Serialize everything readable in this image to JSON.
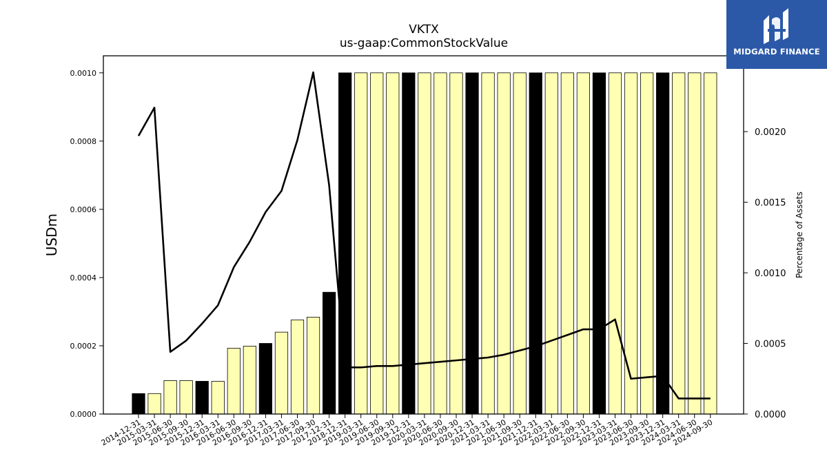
{
  "chart_data": {
    "type": "bar",
    "title": "VKTX",
    "subtitle": "us-gaap:CommonStockValue",
    "ylabel": "USDm",
    "y2label": "Percentage of Assets",
    "ylim": [
      0,
      0.00105
    ],
    "y2lim": [
      0,
      0.002537
    ],
    "yticks": [
      "0.0000",
      "0.0002",
      "0.0004",
      "0.0006",
      "0.0008",
      "0.0010"
    ],
    "y2ticks": [
      "0.0000",
      "0.0005",
      "0.0010",
      "0.0015",
      "0.0020"
    ],
    "categories": [
      "2014-12-31",
      "2015-03-31",
      "2015-06-30",
      "2015-09-30",
      "2015-12-31",
      "2016-03-31",
      "2016-06-30",
      "2016-09-30",
      "2016-12-31",
      "2017-03-31",
      "2017-06-30",
      "2017-09-30",
      "2017-12-31",
      "2018-12-31",
      "2019-03-31",
      "2019-06-30",
      "2019-09-30",
      "2019-12-31",
      "2020-03-31",
      "2020-06-30",
      "2020-09-30",
      "2020-12-31",
      "2021-03-31",
      "2021-06-30",
      "2021-09-30",
      "2021-12-31",
      "2022-03-31",
      "2022-06-30",
      "2022-09-30",
      "2022-12-31",
      "2023-03-31",
      "2023-06-30",
      "2023-09-30",
      "2023-12-31",
      "2024-03-31",
      "2024-06-30",
      "2024-09-30"
    ],
    "series": [
      {
        "type": "bar",
        "values": [
          6e-05,
          6e-05,
          9.8e-05,
          9.8e-05,
          9.6e-05,
          9.6e-05,
          0.000193,
          0.000199,
          0.000207,
          0.00024,
          0.000276,
          0.000284,
          0.000357,
          0.001,
          0.001,
          0.001,
          0.001,
          0.001,
          0.001,
          0.001,
          0.001,
          0.001,
          0.001,
          0.001,
          0.001,
          0.001,
          0.001,
          0.001,
          0.001,
          0.001,
          0.001,
          0.001,
          0.001,
          0.001,
          0.001,
          0.001,
          0.001
        ],
        "year_end": [
          true,
          false,
          false,
          false,
          true,
          false,
          false,
          false,
          true,
          false,
          false,
          false,
          true,
          true,
          false,
          false,
          false,
          true,
          false,
          false,
          false,
          true,
          false,
          false,
          false,
          true,
          false,
          false,
          false,
          true,
          false,
          false,
          false,
          true,
          false,
          false,
          false
        ]
      },
      {
        "type": "line",
        "axis": "right",
        "values": [
          0.00197,
          0.00217,
          0.00044,
          0.00052,
          0.00064,
          0.00077,
          0.00104,
          0.00122,
          0.00143,
          0.00158,
          0.00194,
          0.00242,
          0.00162,
          0.00033,
          0.00033,
          0.00034,
          0.00034,
          0.00035,
          0.00036,
          0.00037,
          0.00038,
          0.00039,
          0.0004,
          0.00042,
          0.00045,
          0.00048,
          0.00052,
          0.00056,
          0.0006,
          0.0006,
          0.00067,
          0.00025,
          0.00026,
          0.00027,
          0.00011,
          0.00011,
          0.00011
        ]
      }
    ],
    "colors": {
      "year_end_bar": "#000000",
      "quarter_bar": "#ffffb3",
      "bar_edge": "#000000",
      "line": "#000000"
    },
    "grid": false
  },
  "logo": {
    "text": "MIDGARD FINANCE",
    "background": "#2b59a8"
  }
}
